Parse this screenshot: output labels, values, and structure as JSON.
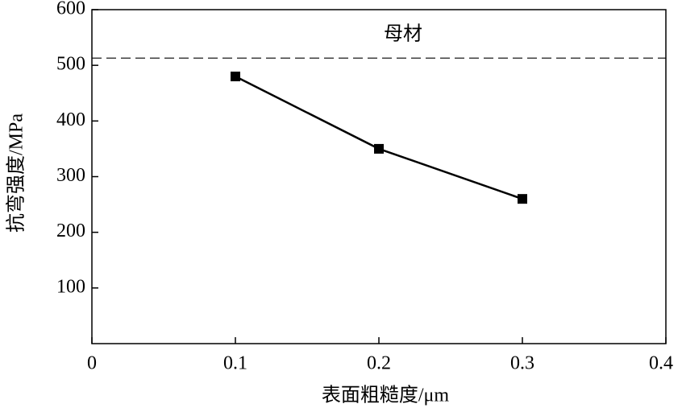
{
  "chart_data": {
    "type": "line",
    "x_label": "表面粗糙度/μm",
    "y_label": "抗弯强度/MPa",
    "x": [
      0.1,
      0.2,
      0.3
    ],
    "series": [
      {
        "color": "#000000",
        "values": [
          480,
          350,
          260
        ]
      }
    ],
    "xlim": [
      0,
      0.4
    ],
    "xticks": [
      0,
      0.1,
      0.2,
      0.3,
      0.4
    ],
    "ylim": [
      0,
      600
    ],
    "yticks": [
      100,
      200,
      300,
      400,
      500,
      600
    ],
    "reference_line": {
      "value": 513,
      "label": "母材"
    },
    "grid": false
  }
}
